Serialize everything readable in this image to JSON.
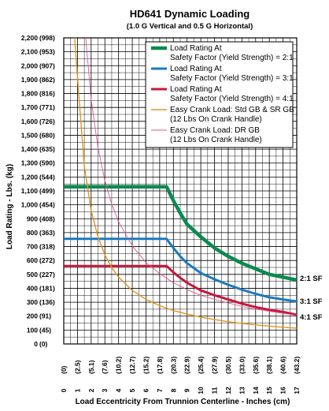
{
  "chart_data": {
    "type": "line",
    "title": "HD641 Dynamic Loading",
    "subtitle": "(1.0 G Vertical and 0.5 G Horizontal)",
    "xlabel": "Load Eccentricity From Trunnion Centerline - Inches (cm)",
    "ylabel": "Load Rating - Lbs. (kg)",
    "xlim": [
      0,
      17
    ],
    "ylim": [
      0,
      2200
    ],
    "x_ticks": [
      {
        "value": 0,
        "label": "0",
        "sublabel": "(0)"
      },
      {
        "value": 1,
        "label": "1",
        "sublabel": "(2.5)"
      },
      {
        "value": 2,
        "label": "2",
        "sublabel": "(5.1)"
      },
      {
        "value": 3,
        "label": "3",
        "sublabel": "(7.6)"
      },
      {
        "value": 4,
        "label": "4",
        "sublabel": "(10.2)"
      },
      {
        "value": 5,
        "label": "5",
        "sublabel": "(12.7)"
      },
      {
        "value": 6,
        "label": "6",
        "sublabel": "(15.2)"
      },
      {
        "value": 7,
        "label": "7",
        "sublabel": "(17.8)"
      },
      {
        "value": 8,
        "label": "8",
        "sublabel": "(20.3)"
      },
      {
        "value": 9,
        "label": "9",
        "sublabel": "(22.9)"
      },
      {
        "value": 10,
        "label": "10",
        "sublabel": "(25.4)"
      },
      {
        "value": 11,
        "label": "11",
        "sublabel": "(27.9)"
      },
      {
        "value": 12,
        "label": "12",
        "sublabel": "(30.5)"
      },
      {
        "value": 13,
        "label": "13",
        "sublabel": "(33.0)"
      },
      {
        "value": 14,
        "label": "14",
        "sublabel": "(35.6)"
      },
      {
        "value": 15,
        "label": "15",
        "sublabel": "(38.1)"
      },
      {
        "value": 16,
        "label": "16",
        "sublabel": "(40.6)"
      },
      {
        "value": 17,
        "label": "17",
        "sublabel": "(43.2)"
      }
    ],
    "y_ticks": [
      {
        "value": 0,
        "label": "0",
        "sublabel": "(0)"
      },
      {
        "value": 100,
        "label": "100",
        "sublabel": "(45)"
      },
      {
        "value": 200,
        "label": "200",
        "sublabel": "(91)"
      },
      {
        "value": 300,
        "label": "300",
        "sublabel": "(136)"
      },
      {
        "value": 400,
        "label": "400",
        "sublabel": "(181)"
      },
      {
        "value": 500,
        "label": "500",
        "sublabel": "(227)"
      },
      {
        "value": 600,
        "label": "600",
        "sublabel": "(272)"
      },
      {
        "value": 700,
        "label": "700",
        "sublabel": "(318)"
      },
      {
        "value": 800,
        "label": "800",
        "sublabel": "(363)"
      },
      {
        "value": 900,
        "label": "900",
        "sublabel": "(408)"
      },
      {
        "value": 1000,
        "label": "1,000",
        "sublabel": "(454)"
      },
      {
        "value": 1100,
        "label": "1,100",
        "sublabel": "(499)"
      },
      {
        "value": 1200,
        "label": "1,200",
        "sublabel": "(544)"
      },
      {
        "value": 1300,
        "label": "1,300",
        "sublabel": "(590)"
      },
      {
        "value": 1400,
        "label": "1,400",
        "sublabel": "(635)"
      },
      {
        "value": 1500,
        "label": "1,500",
        "sublabel": "(680)"
      },
      {
        "value": 1600,
        "label": "1,600",
        "sublabel": "(726)"
      },
      {
        "value": 1700,
        "label": "1,700",
        "sublabel": "(771)"
      },
      {
        "value": 1800,
        "label": "1,800",
        "sublabel": "(816)"
      },
      {
        "value": 1900,
        "label": "1,900",
        "sublabel": "(862)"
      },
      {
        "value": 2000,
        "label": "2,000",
        "sublabel": "(907)"
      },
      {
        "value": 2100,
        "label": "2,100",
        "sublabel": "(953)"
      },
      {
        "value": 2200,
        "label": "2,200",
        "sublabel": "(998)"
      }
    ],
    "grid": true,
    "legend_position": "top-right",
    "series": [
      {
        "name": "Load Rating At Safety Factor (Yield Strength) = 2:1",
        "legend_lines": [
          "Load Rating At",
          "Safety Factor (Yield Strength) = 2:1"
        ],
        "end_label": "2:1 SF",
        "color": "#0b8a4f",
        "style": "thick",
        "x": [
          0,
          7.5,
          8,
          8.5,
          9,
          10,
          11,
          12,
          13,
          14,
          15,
          16,
          17
        ],
        "y": [
          1130,
          1130,
          1030,
          940,
          860,
          770,
          690,
          630,
          580,
          540,
          500,
          480,
          460
        ]
      },
      {
        "name": "Load Rating At Safety Factor (Yield Strength) = 3:1",
        "legend_lines": [
          "Load Rating At",
          "Safety Factor (Yield Strength) = 3:1"
        ],
        "end_label": "3:1 SF",
        "color": "#1a7bbf",
        "style": "medium",
        "x": [
          0,
          7.5,
          8,
          8.5,
          9,
          10,
          11,
          12,
          13,
          14,
          15,
          16,
          17
        ],
        "y": [
          755,
          755,
          690,
          630,
          580,
          510,
          465,
          425,
          390,
          360,
          335,
          320,
          305
        ]
      },
      {
        "name": "Load Rating At Safety Factor (Yield Strength) = 4:1",
        "legend_lines": [
          "Load Rating At",
          "Safety Factor (Yield Strength) = 4:1"
        ],
        "end_label": "4:1 SF",
        "color": "#c8173a",
        "style": "medium",
        "x": [
          0,
          7.5,
          8,
          8.5,
          9,
          10,
          11,
          12,
          13,
          14,
          15,
          16,
          17
        ],
        "y": [
          560,
          560,
          515,
          475,
          440,
          385,
          350,
          320,
          290,
          265,
          245,
          230,
          210
        ]
      },
      {
        "name": "Easy Crank Load: Std GB & SR GB (12 Lbs On Crank Handle)",
        "legend_lines": [
          "Easy Crank Load: Std GB & SR GB",
          "(12 Lbs On Crank Handle)"
        ],
        "color": "#e0951f",
        "style": "thin",
        "x": [
          0.8,
          1,
          1.5,
          2,
          2.5,
          3,
          3.5,
          4,
          5,
          6,
          7,
          8,
          9,
          10,
          11,
          12,
          13,
          14,
          15,
          16,
          17
        ],
        "y": [
          2200,
          1920,
          1280,
          960,
          770,
          640,
          550,
          480,
          385,
          320,
          275,
          240,
          215,
          192,
          175,
          160,
          148,
          137,
          128,
          120,
          113
        ]
      },
      {
        "name": "Easy Crank Load: DR GB (12 Lbs On Crank Handle)",
        "legend_lines": [
          "Easy Crank Load: DR GB",
          "(12 Lbs On Crank Handle)"
        ],
        "color": "#e0559a",
        "style": "hairline",
        "x": [
          1.6,
          2,
          2.5,
          3,
          3.5,
          4,
          5,
          6,
          7,
          8,
          9,
          10,
          11,
          12,
          13,
          14,
          15,
          16,
          17
        ],
        "y": [
          2200,
          1760,
          1410,
          1175,
          1005,
          880,
          705,
          585,
          505,
          440,
          390,
          350,
          320,
          295,
          270,
          250,
          235,
          220,
          205
        ]
      }
    ]
  }
}
